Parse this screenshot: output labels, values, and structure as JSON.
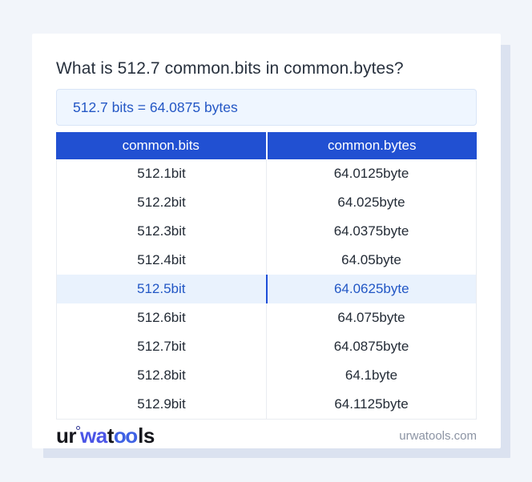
{
  "title": "What is 512.7 common.bits in common.bytes?",
  "result": "512.7 bits = 64.0875 bytes",
  "table": {
    "headers": [
      "common.bits",
      "common.bytes"
    ],
    "rows": [
      {
        "bits": "512.1bit",
        "bytes": "64.0125byte",
        "highlighted": false
      },
      {
        "bits": "512.2bit",
        "bytes": "64.025byte",
        "highlighted": false
      },
      {
        "bits": "512.3bit",
        "bytes": "64.0375byte",
        "highlighted": false
      },
      {
        "bits": "512.4bit",
        "bytes": "64.05byte",
        "highlighted": false
      },
      {
        "bits": "512.5bit",
        "bytes": "64.0625byte",
        "highlighted": true
      },
      {
        "bits": "512.6bit",
        "bytes": "64.075byte",
        "highlighted": false
      },
      {
        "bits": "512.7bit",
        "bytes": "64.0875byte",
        "highlighted": false
      },
      {
        "bits": "512.8bit",
        "bytes": "64.1byte",
        "highlighted": false
      },
      {
        "bits": "512.9bit",
        "bytes": "64.1125byte",
        "highlighted": false
      }
    ]
  },
  "footer": {
    "logo": {
      "part1": "ur",
      "part2": "wa",
      "part3": "t",
      "part4": "oo",
      "part5": "ls"
    },
    "domain": "urwatools.com"
  },
  "colors": {
    "page_background": "#f2f5fa",
    "card_background": "#ffffff",
    "card_shadow": "#dbe2f0",
    "header_background": "#2150d2",
    "header_text": "#ffffff",
    "result_background": "#eff6ff",
    "result_text": "#2457c5",
    "highlight_row_background": "#e9f2fd",
    "highlight_row_text": "#2257c5",
    "highlight_divider": "#1d4ed8",
    "row_text": "#232b36",
    "table_border": "#e9ecf1",
    "footer_domain_text": "#8b93a3",
    "logo_blue": "#4a54e6"
  }
}
